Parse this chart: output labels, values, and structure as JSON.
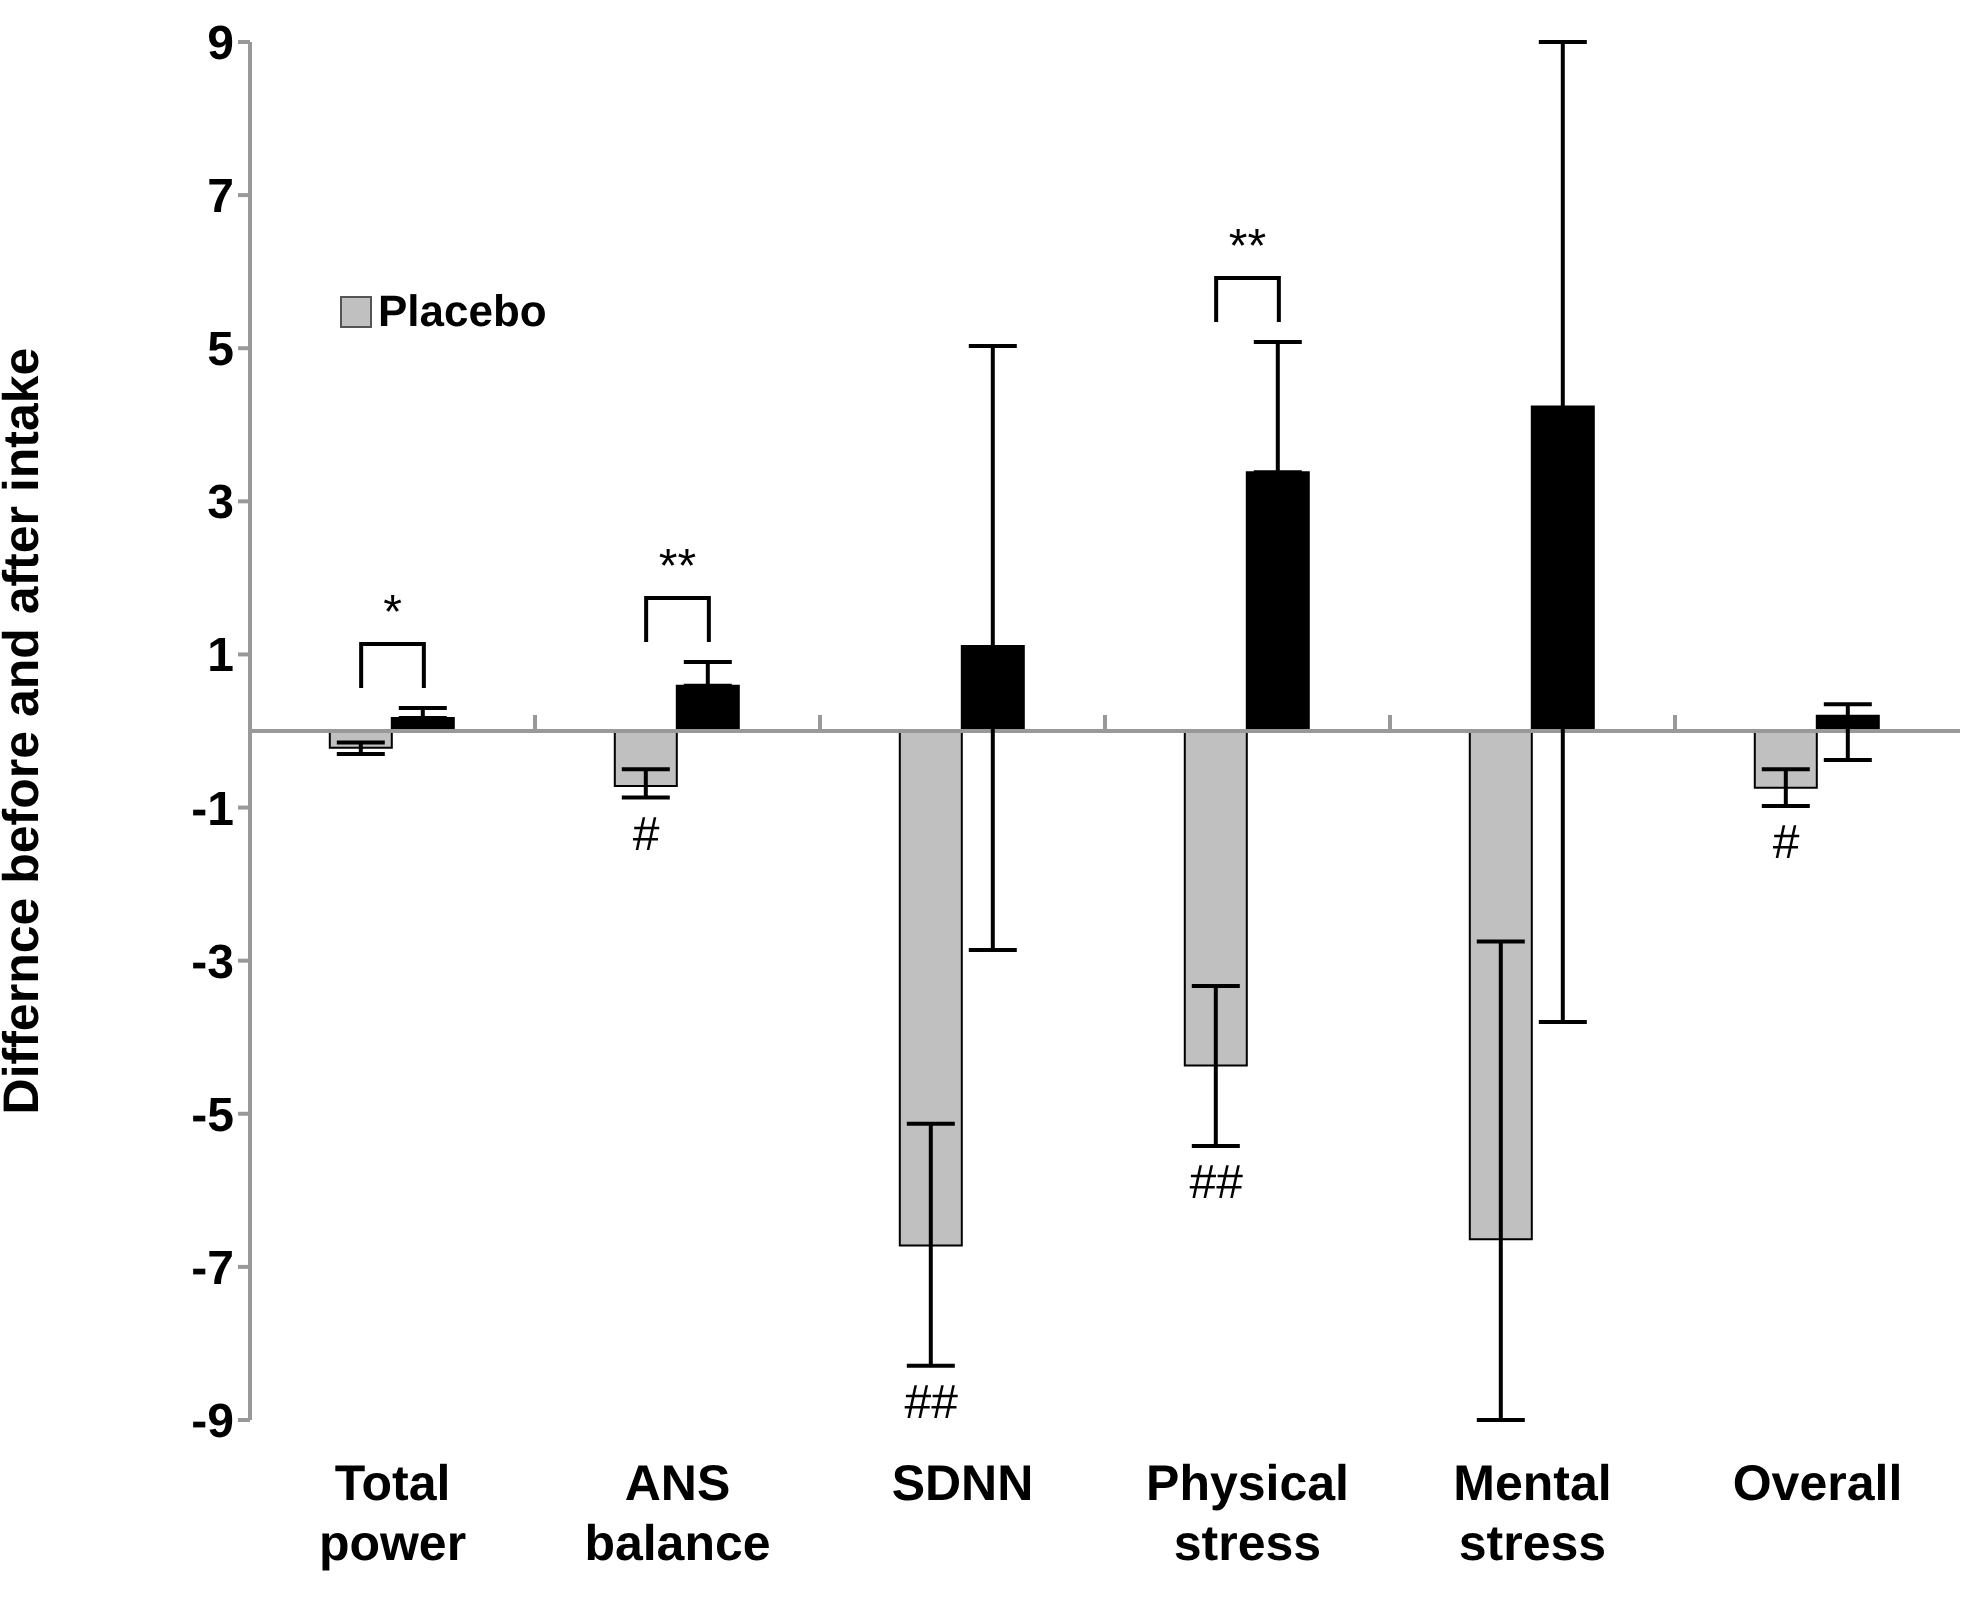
{
  "chart_data": {
    "type": "bar",
    "ylabel": "Differnce before and after intake",
    "categories": [
      "Total power",
      "ANS balance",
      "SDNN",
      "Physical stress",
      "Mental stress",
      "Overall"
    ],
    "series": [
      {
        "name": "Placebo",
        "color": "#c0c0c0",
        "values": [
          -0.22,
          -0.72,
          -6.72,
          -4.37,
          -6.64,
          -0.74
        ],
        "errors": [
          [
            -0.3,
            -0.15
          ],
          [
            -0.87,
            -0.5
          ],
          [
            -8.29,
            -5.13
          ],
          [
            -5.42,
            -3.33
          ],
          [
            -9,
            -2.75
          ],
          [
            -0.98,
            -0.5
          ]
        ]
      },
      {
        "color": "#000000",
        "values": [
          0.17,
          0.59,
          1.11,
          3.38,
          4.24,
          0.2
        ],
        "errors": [
          [
            0.17,
            0.3
          ],
          [
            0.59,
            0.9
          ],
          [
            -2.86,
            5.03
          ],
          [
            3.38,
            5.08
          ],
          [
            -3.8,
            9
          ],
          [
            -0.38,
            0.35
          ]
        ]
      }
    ],
    "ylim": [
      -9,
      9
    ],
    "yticks": [
      -9,
      -7,
      -5,
      -3,
      -1,
      1,
      3,
      5,
      7,
      9
    ],
    "grid": false,
    "legend": "top left",
    "annotations": [
      {
        "text": "*",
        "x": "Total power",
        "y": 0.3
      },
      {
        "text": "**",
        "x": "ANS balance",
        "y": 0.9
      },
      {
        "text": "**",
        "x": "Physical stress",
        "y": 5.08
      },
      {
        "text": "#",
        "x": "ANS balance",
        "y": -0.87
      },
      {
        "text": "##",
        "x": "SDNN",
        "y": -8.29
      },
      {
        "text": "##",
        "x": "Physical stress",
        "y": -5.42
      },
      {
        "text": "#",
        "x": "Overall",
        "y": -0.98
      }
    ]
  }
}
